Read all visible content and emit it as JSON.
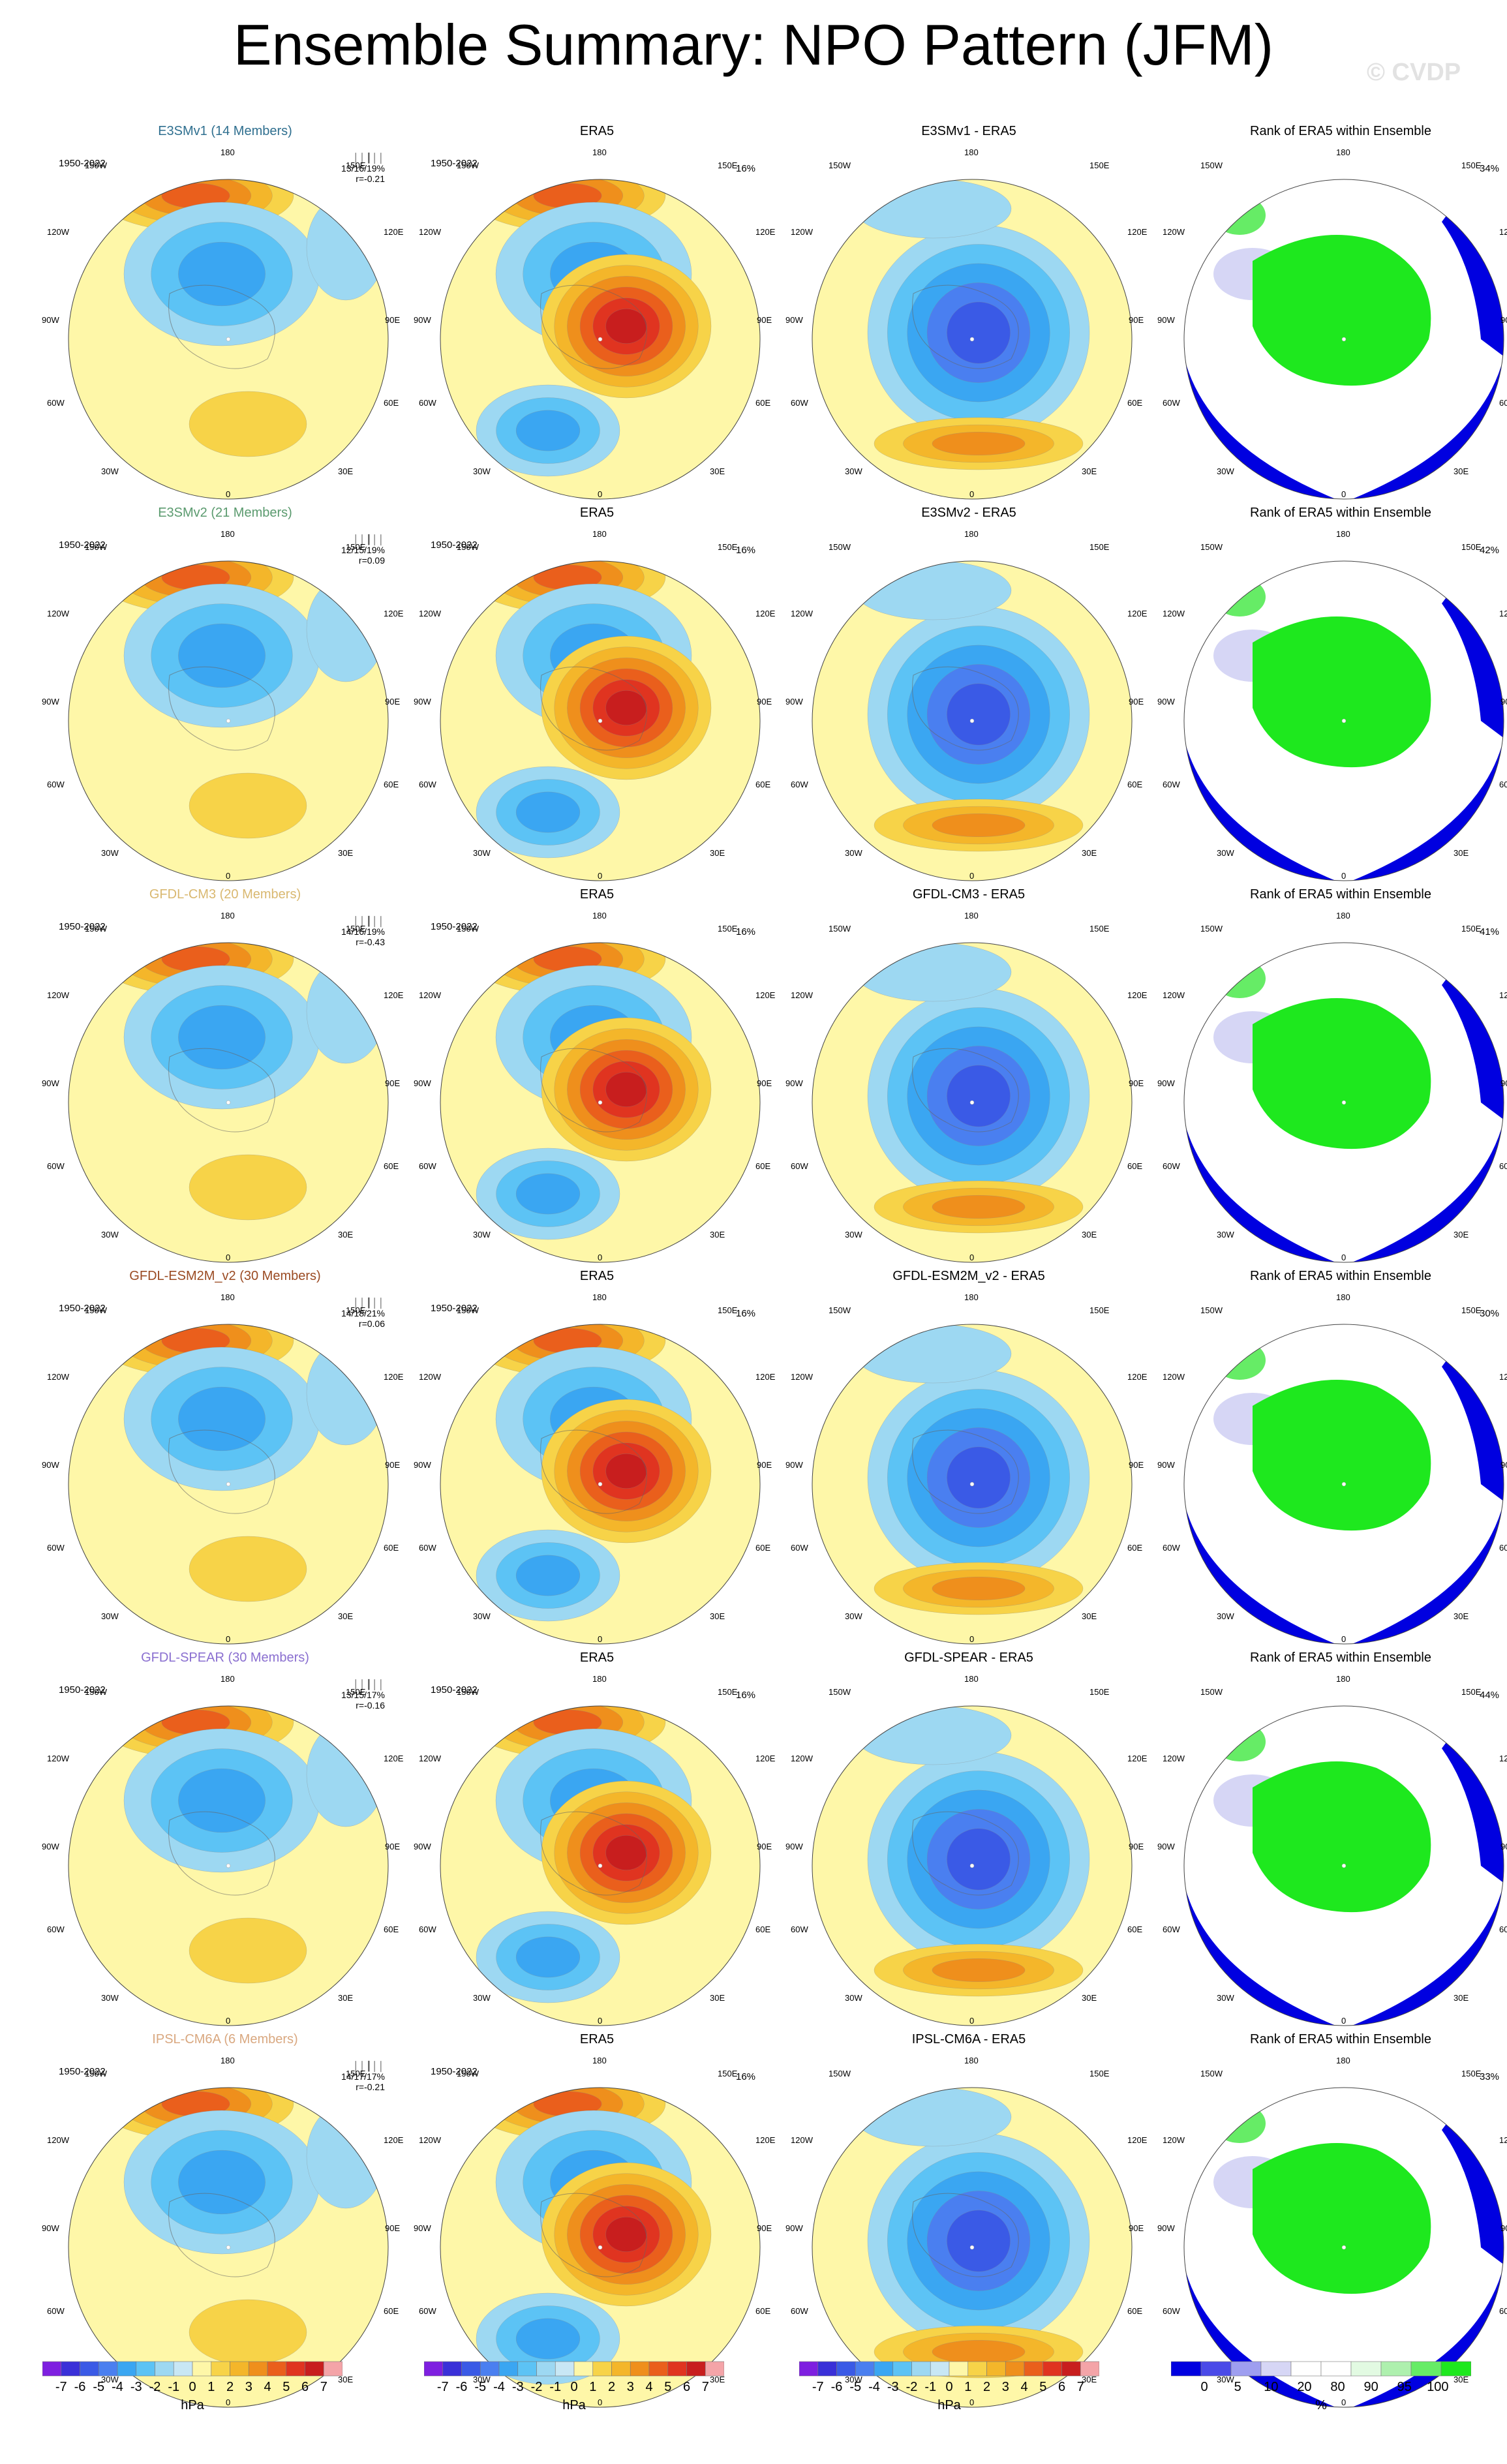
{
  "title": "Ensemble Summary: NPO Pattern (JFM)",
  "watermark": "© CVDP",
  "period": "1950-2022",
  "era5_pct": "16%",
  "era5_title": "ERA5",
  "rank_title": "Rank of ERA5 within Ensemble",
  "lon_labels": {
    "top": "180",
    "bottom": "0",
    "ul": "150W",
    "ur": "150E",
    "l1": "120W",
    "r1": "120E",
    "l2": "90W",
    "r2": "90E",
    "l3": "60W",
    "r3": "60E",
    "bl": "30W",
    "br": "30E"
  },
  "rows": [
    {
      "model": "E3SMv1 (14 Members)",
      "model_color": "#2f6f8f",
      "stats": "13/16/19%",
      "r": "r=-0.21",
      "diff_title": "E3SMv1 - ERA5",
      "rank_pct": "34%"
    },
    {
      "model": "E3SMv2 (21 Members)",
      "model_color": "#5a9a6e",
      "stats": "12/15/19%",
      "r": "r=0.09",
      "diff_title": "E3SMv2 - ERA5",
      "rank_pct": "42%"
    },
    {
      "model": "GFDL-CM3 (20 Members)",
      "model_color": "#d9b870",
      "stats": "14/16/19%",
      "r": "r=-0.43",
      "diff_title": "GFDL-CM3 - ERA5",
      "rank_pct": "41%"
    },
    {
      "model": "GFDL-ESM2M_v2 (30 Members)",
      "model_color": "#9a4a22",
      "stats": "14/18/21%",
      "r": "r=0.06",
      "diff_title": "GFDL-ESM2M_v2 - ERA5",
      "rank_pct": "30%"
    },
    {
      "model": "GFDL-SPEAR (30 Members)",
      "model_color": "#8a6fd0",
      "stats": "13/15/17%",
      "r": "r=-0.16",
      "diff_title": "GFDL-SPEAR - ERA5",
      "rank_pct": "44%"
    },
    {
      "model": "IPSL-CM6A (6 Members)",
      "model_color": "#d9a880",
      "stats": "14/17/17%",
      "r": "r=-0.21",
      "diff_title": "IPSL-CM6A - ERA5",
      "rank_pct": "33%"
    }
  ],
  "colorbar_hpa": {
    "colors": [
      "#7e1fe0",
      "#3a30d8",
      "#3a5ae6",
      "#4a7ff0",
      "#3aa6f2",
      "#5cc3f5",
      "#9dd8f2",
      "#c8e7f5",
      "#fef7a8",
      "#f7d348",
      "#f4b62a",
      "#ef8f1c",
      "#ea5f1c",
      "#e03420",
      "#c81e1e",
      "#f4a4a8"
    ],
    "ticks": [
      "-7",
      "-6",
      "-5",
      "-4",
      "-3",
      "-2",
      "-1",
      "0",
      "1",
      "2",
      "3",
      "4",
      "5",
      "6",
      "7"
    ],
    "unit": "hPa"
  },
  "colorbar_rank": {
    "colors": [
      "#0000e0",
      "#4a4ae8",
      "#9e9ef0",
      "#d6d6f5",
      "#ffffff",
      "#ffffff",
      "#e2fae2",
      "#aef0ae",
      "#66ec66",
      "#1ee81e"
    ],
    "ticks": [
      "0",
      "5",
      "10",
      "20",
      "80",
      "90",
      "95",
      "100"
    ],
    "unit": "%"
  }
}
